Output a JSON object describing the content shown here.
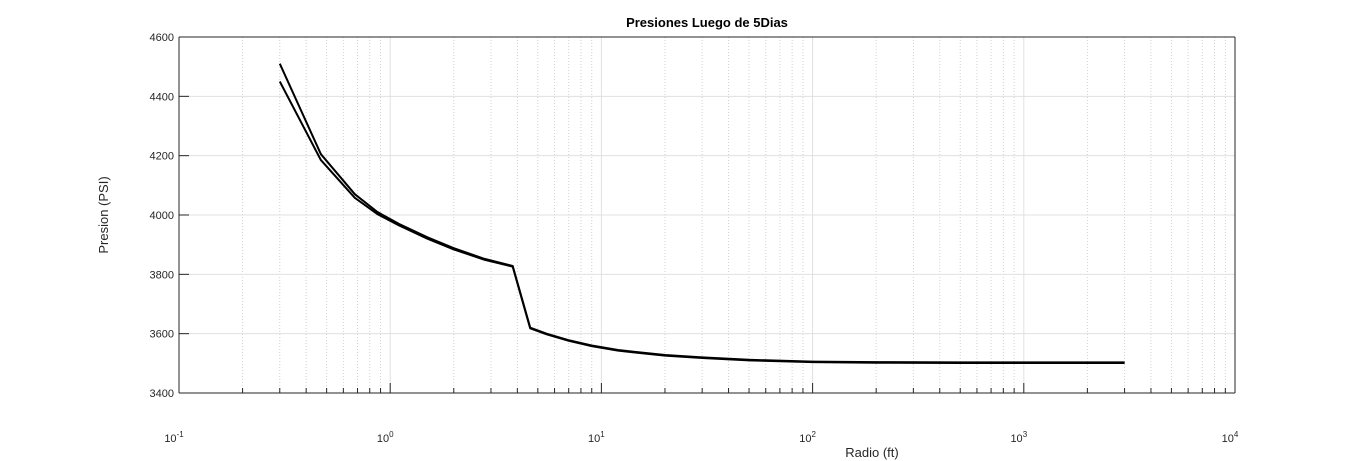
{
  "chart_data": {
    "type": "line",
    "title": "Presiones Luego de 5Dias",
    "xlabel": "Radio (ft)",
    "ylabel": "Presion (PSI)",
    "xscale": "log",
    "xlim": [
      0.1,
      10000
    ],
    "ylim": [
      3400,
      4600
    ],
    "grid": true,
    "minor_grid_x": true,
    "x_ticks": [
      {
        "base": "10",
        "exp": "-1"
      },
      {
        "base": "10",
        "exp": "0"
      },
      {
        "base": "10",
        "exp": "1"
      },
      {
        "base": "10",
        "exp": "2"
      },
      {
        "base": "10",
        "exp": "3"
      },
      {
        "base": "10",
        "exp": "4"
      }
    ],
    "y_ticks": [
      "3400",
      "3600",
      "3800",
      "4000",
      "4200",
      "4400",
      "4600"
    ],
    "line_color": "#000000",
    "series": [
      {
        "x": [
          0.3,
          0.47,
          0.68,
          0.87,
          1.1,
          1.5,
          2.0,
          2.8,
          3.8,
          4.6,
          5.5,
          7.0,
          9.0,
          12,
          16,
          20,
          30,
          50,
          100,
          200,
          500,
          1000,
          2000,
          3000
        ],
        "y": [
          4510,
          4205,
          4070,
          4010,
          3970,
          3925,
          3888,
          3852,
          3828,
          3620,
          3600,
          3578,
          3560,
          3545,
          3535,
          3528,
          3520,
          3512,
          3506,
          3504,
          3503,
          3503,
          3503,
          3503
        ]
      },
      {
        "x": [
          0.3,
          0.47,
          0.68,
          0.87,
          1.1,
          1.5,
          2.0,
          2.8,
          3.8,
          4.6,
          5.5,
          7.0,
          9.0,
          12,
          16,
          20,
          30,
          50,
          100,
          200,
          500,
          1000,
          2000,
          3000
        ],
        "y": [
          4450,
          4185,
          4058,
          4003,
          3965,
          3920,
          3884,
          3849,
          3826,
          3618,
          3598,
          3576,
          3558,
          3543,
          3533,
          3526,
          3518,
          3510,
          3504,
          3502,
          3501,
          3501,
          3501,
          3501
        ]
      }
    ]
  }
}
